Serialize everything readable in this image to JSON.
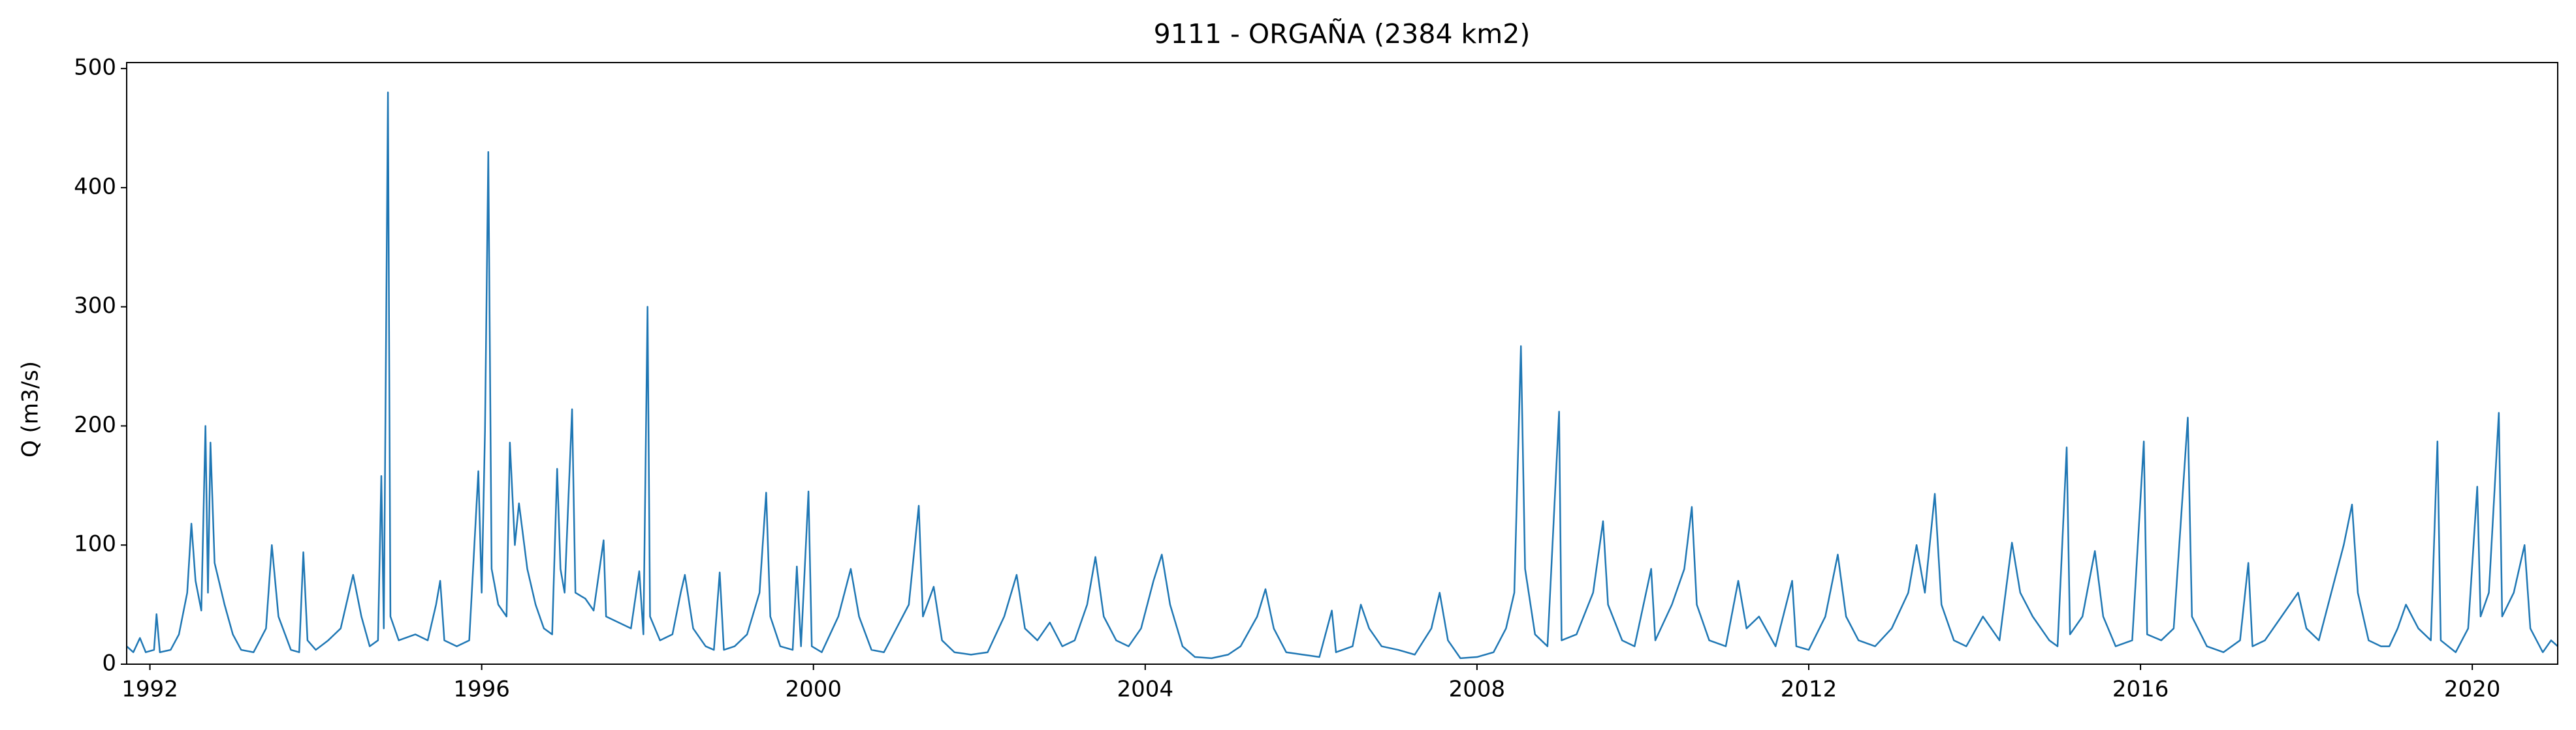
{
  "chart_data": {
    "type": "line",
    "title": "9111 - ORGAÑA (2384 km2)",
    "y_label": "Q (m3/s)",
    "color": "#1f77b4",
    "xlim": [
      1991.72,
      2021.03
    ],
    "xticks": [
      1992,
      1996,
      2000,
      2004,
      2008,
      2012,
      2016,
      2020
    ],
    "ylim": [
      0,
      505
    ],
    "yticks": [
      0,
      100,
      200,
      300,
      400,
      500
    ],
    "grid": false,
    "x": [
      1991.72,
      1991.8,
      1991.88,
      1991.95,
      1992.05,
      1992.08,
      1992.12,
      1992.25,
      1992.35,
      1992.45,
      1992.5,
      1992.55,
      1992.62,
      1992.67,
      1992.7,
      1992.73,
      1992.78,
      1992.9,
      1993.0,
      1993.1,
      1993.25,
      1993.4,
      1993.47,
      1993.55,
      1993.7,
      1993.8,
      1993.85,
      1993.9,
      1994.0,
      1994.15,
      1994.3,
      1994.45,
      1994.55,
      1994.65,
      1994.75,
      1994.79,
      1994.82,
      1994.87,
      1994.9,
      1995.0,
      1995.2,
      1995.35,
      1995.45,
      1995.5,
      1995.55,
      1995.7,
      1995.85,
      1995.96,
      1996.0,
      1996.04,
      1996.08,
      1996.12,
      1996.2,
      1996.3,
      1996.34,
      1996.4,
      1996.45,
      1996.55,
      1996.65,
      1996.75,
      1996.85,
      1996.91,
      1996.95,
      1997.0,
      1997.09,
      1997.13,
      1997.25,
      1997.35,
      1997.47,
      1997.5,
      1997.65,
      1997.8,
      1997.9,
      1997.95,
      1998.0,
      1998.03,
      1998.15,
      1998.3,
      1998.4,
      1998.45,
      1998.55,
      1998.7,
      1998.8,
      1998.87,
      1998.92,
      1999.05,
      1999.2,
      1999.35,
      1999.43,
      1999.48,
      1999.6,
      1999.75,
      1999.8,
      1999.85,
      1999.94,
      1999.98,
      2000.1,
      2000.3,
      2000.45,
      2000.55,
      2000.7,
      2000.85,
      2001.0,
      2001.15,
      2001.27,
      2001.32,
      2001.45,
      2001.55,
      2001.7,
      2001.9,
      2002.1,
      2002.3,
      2002.45,
      2002.55,
      2002.7,
      2002.85,
      2003.0,
      2003.15,
      2003.3,
      2003.4,
      2003.5,
      2003.65,
      2003.8,
      2003.95,
      2004.1,
      2004.2,
      2004.3,
      2004.45,
      2004.6,
      2004.8,
      2005.0,
      2005.15,
      2005.35,
      2005.45,
      2005.55,
      2005.7,
      2005.9,
      2006.1,
      2006.25,
      2006.3,
      2006.5,
      2006.6,
      2006.7,
      2006.85,
      2007.05,
      2007.25,
      2007.45,
      2007.55,
      2007.65,
      2007.8,
      2008.0,
      2008.2,
      2008.35,
      2008.45,
      2008.53,
      2008.58,
      2008.7,
      2008.85,
      2008.99,
      2009.02,
      2009.2,
      2009.4,
      2009.52,
      2009.58,
      2009.75,
      2009.9,
      2010.1,
      2010.15,
      2010.35,
      2010.5,
      2010.59,
      2010.65,
      2010.8,
      2011.0,
      2011.15,
      2011.25,
      2011.4,
      2011.6,
      2011.8,
      2011.85,
      2012.0,
      2012.2,
      2012.35,
      2012.45,
      2012.6,
      2012.8,
      2013.0,
      2013.2,
      2013.3,
      2013.4,
      2013.52,
      2013.6,
      2013.75,
      2013.9,
      2014.1,
      2014.3,
      2014.45,
      2014.55,
      2014.7,
      2014.9,
      2015.0,
      2015.11,
      2015.15,
      2015.3,
      2015.45,
      2015.55,
      2015.7,
      2015.9,
      2016.04,
      2016.08,
      2016.25,
      2016.4,
      2016.57,
      2016.62,
      2016.8,
      2017.0,
      2017.2,
      2017.3,
      2017.35,
      2017.5,
      2017.7,
      2017.9,
      2018.0,
      2018.15,
      2018.3,
      2018.45,
      2018.55,
      2018.62,
      2018.75,
      2018.9,
      2019.0,
      2019.1,
      2019.2,
      2019.35,
      2019.5,
      2019.58,
      2019.62,
      2019.8,
      2019.95,
      2020.06,
      2020.1,
      2020.2,
      2020.32,
      2020.36,
      2020.5,
      2020.63,
      2020.7,
      2020.85,
      2020.95,
      2021.03
    ],
    "values": [
      15,
      10,
      22,
      10,
      12,
      42,
      10,
      12,
      25,
      60,
      118,
      70,
      45,
      200,
      60,
      186,
      85,
      50,
      25,
      12,
      10,
      30,
      100,
      40,
      12,
      10,
      94,
      20,
      12,
      20,
      30,
      75,
      40,
      15,
      20,
      158,
      30,
      480,
      40,
      20,
      25,
      20,
      50,
      70,
      20,
      15,
      20,
      162,
      60,
      196,
      430,
      80,
      50,
      40,
      186,
      100,
      135,
      80,
      50,
      30,
      25,
      164,
      80,
      60,
      214,
      60,
      55,
      45,
      104,
      40,
      35,
      30,
      78,
      25,
      300,
      40,
      20,
      25,
      60,
      75,
      30,
      15,
      12,
      77,
      12,
      15,
      25,
      60,
      144,
      40,
      15,
      12,
      82,
      15,
      145,
      15,
      10,
      40,
      80,
      40,
      12,
      10,
      30,
      50,
      133,
      40,
      65,
      20,
      10,
      8,
      10,
      40,
      75,
      30,
      20,
      35,
      15,
      20,
      50,
      90,
      40,
      20,
      15,
      30,
      70,
      92,
      50,
      15,
      6,
      5,
      8,
      15,
      40,
      63,
      30,
      10,
      8,
      6,
      45,
      10,
      15,
      50,
      30,
      15,
      12,
      8,
      30,
      60,
      20,
      5,
      6,
      10,
      30,
      60,
      267,
      80,
      25,
      15,
      212,
      20,
      25,
      60,
      120,
      50,
      20,
      15,
      80,
      20,
      50,
      80,
      132,
      50,
      20,
      15,
      70,
      30,
      40,
      15,
      70,
      15,
      12,
      40,
      92,
      40,
      20,
      15,
      30,
      60,
      100,
      60,
      143,
      50,
      20,
      15,
      40,
      20,
      102,
      60,
      40,
      20,
      15,
      182,
      25,
      40,
      95,
      40,
      15,
      20,
      187,
      25,
      20,
      30,
      207,
      40,
      15,
      10,
      20,
      85,
      15,
      20,
      40,
      60,
      30,
      20,
      60,
      100,
      134,
      60,
      20,
      15,
      15,
      30,
      50,
      30,
      20,
      187,
      20,
      10,
      30,
      149,
      40,
      60,
      211,
      40,
      60,
      100,
      30,
      10,
      20,
      15
    ]
  }
}
